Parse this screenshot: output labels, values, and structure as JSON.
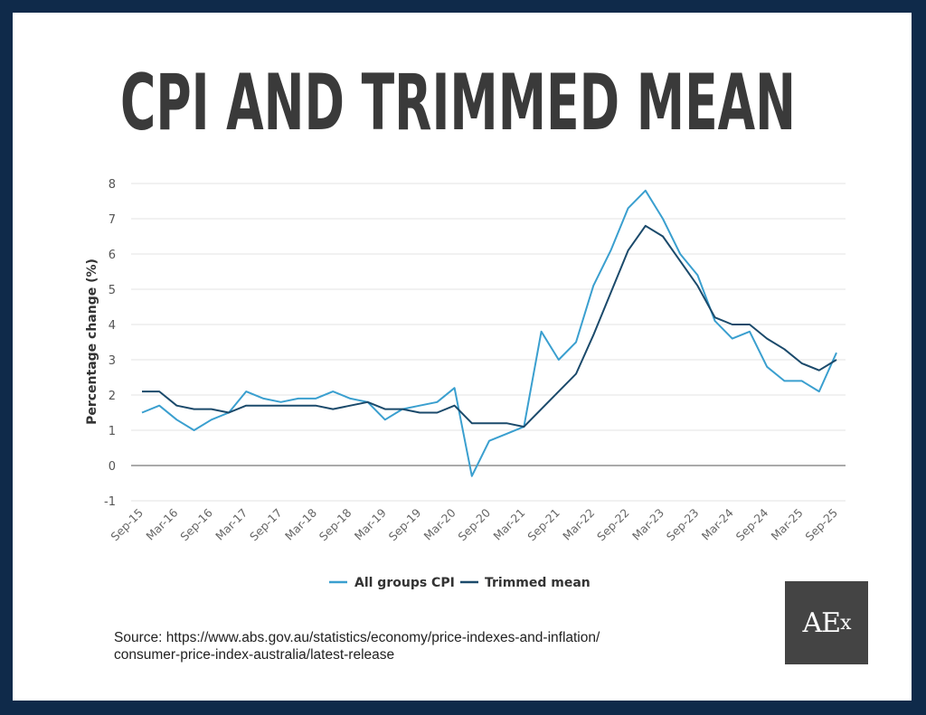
{
  "title": "CPI AND TRIMMED MEAN",
  "source_line1": "Source: https://www.abs.gov.au/statistics/economy/price-indexes-and-inflation/",
  "source_line2": "consumer-price-index-australia/latest-release",
  "logo": "AEx",
  "colors": {
    "frame": "#0f2a4a",
    "cpi": "#3a9fcf",
    "trimmed": "#1b4a6b",
    "title": "#3a3a3a"
  },
  "chart_data": {
    "type": "line",
    "title": "CPI AND TRIMMED MEAN",
    "xlabel": "",
    "ylabel": "Percentage change (%)",
    "ylim": [
      -1,
      8
    ],
    "yticks": [
      "-1",
      "0",
      "1",
      "2",
      "3",
      "4",
      "5",
      "6",
      "7",
      "8"
    ],
    "grid": true,
    "legend": "bottom",
    "x": [
      "Sep-15",
      "Dec-15",
      "Mar-16",
      "Jun-16",
      "Sep-16",
      "Dec-16",
      "Mar-17",
      "Jun-17",
      "Sep-17",
      "Dec-17",
      "Mar-18",
      "Jun-18",
      "Sep-18",
      "Dec-18",
      "Mar-19",
      "Jun-19",
      "Sep-19",
      "Dec-19",
      "Mar-20",
      "Jun-20",
      "Sep-20",
      "Dec-20",
      "Mar-21",
      "Jun-21",
      "Sep-21",
      "Dec-21",
      "Mar-22",
      "Jun-22",
      "Sep-22",
      "Dec-22",
      "Mar-23",
      "Jun-23",
      "Sep-23",
      "Dec-23",
      "Mar-24",
      "Jun-24",
      "Sep-24",
      "Dec-24",
      "Mar-25",
      "Jun-25",
      "Sep-25"
    ],
    "xticks": [
      "Sep-15",
      "Mar-16",
      "Sep-16",
      "Mar-17",
      "Sep-17",
      "Mar-18",
      "Sep-18",
      "Mar-19",
      "Sep-19",
      "Mar-20",
      "Sep-20",
      "Mar-21",
      "Sep-21",
      "Mar-22",
      "Sep-22",
      "Mar-23",
      "Sep-23",
      "Mar-24",
      "Sep-24",
      "Mar-25",
      "Sep-25"
    ],
    "series": [
      {
        "name": "All groups CPI",
        "values": [
          1.5,
          1.7,
          1.3,
          1.0,
          1.3,
          1.5,
          2.1,
          1.9,
          1.8,
          1.9,
          1.9,
          2.1,
          1.9,
          1.8,
          1.3,
          1.6,
          1.7,
          1.8,
          2.2,
          -0.3,
          0.7,
          0.9,
          1.1,
          3.8,
          3.0,
          3.5,
          5.1,
          6.1,
          7.3,
          7.8,
          7.0,
          6.0,
          5.4,
          4.1,
          3.6,
          3.8,
          2.8,
          2.4,
          2.4,
          2.1,
          3.2
        ]
      },
      {
        "name": "Trimmed mean",
        "values": [
          2.1,
          2.1,
          1.7,
          1.6,
          1.6,
          1.5,
          1.7,
          1.7,
          1.7,
          1.7,
          1.7,
          1.6,
          1.7,
          1.8,
          1.6,
          1.6,
          1.5,
          1.5,
          1.7,
          1.2,
          1.2,
          1.2,
          1.1,
          1.6,
          2.1,
          2.6,
          3.7,
          4.9,
          6.1,
          6.8,
          6.5,
          5.8,
          5.1,
          4.2,
          4.0,
          4.0,
          3.6,
          3.3,
          2.9,
          2.7,
          3.0
        ]
      }
    ]
  }
}
